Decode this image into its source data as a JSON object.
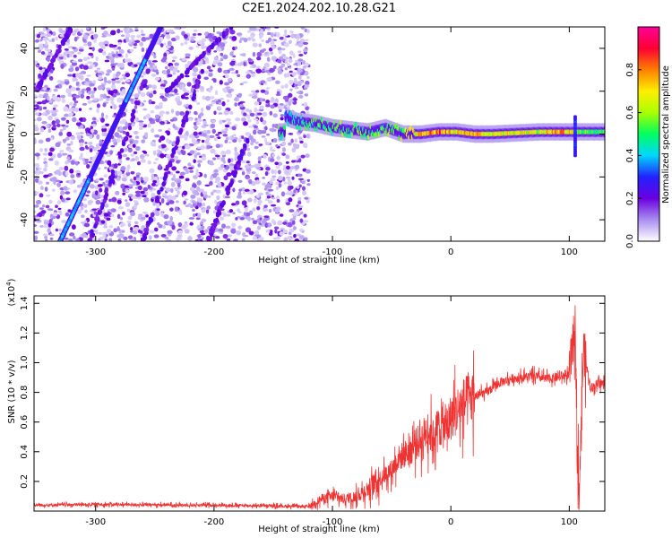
{
  "title": "C2E1.2024.202.10.28.G21",
  "chart_data": [
    {
      "type": "heatmap",
      "xlabel": "Height of straight line (km)",
      "ylabel": "Frequency (Hz)",
      "xlim": [
        -352,
        130
      ],
      "ylim": [
        -50,
        50
      ],
      "x_ticks": [
        -300,
        -200,
        -100,
        0,
        100
      ],
      "x_tick_labels": [
        "-300",
        "-200",
        "-100",
        "0",
        "100"
      ],
      "y_ticks": [
        -40,
        -20,
        0,
        20,
        40
      ],
      "y_tick_labels": [
        "-40",
        "-20",
        "0",
        "20",
        "40"
      ],
      "colorbar": {
        "label": "Normalized spectral amplitude",
        "range": [
          0,
          1
        ],
        "ticks": [
          0.0,
          0.2,
          0.4,
          0.6,
          0.8
        ],
        "tick_labels": [
          "0.0",
          "0.2",
          "0.4",
          "0.6",
          "0.8"
        ],
        "colors": [
          "#ffffff",
          "#a98ef0",
          "#6a00e0",
          "#2222ff",
          "#00d7ff",
          "#00ff60",
          "#aaff00",
          "#ffee00",
          "#ff7f00",
          "#ff0033",
          "#ff0099"
        ]
      },
      "features": {
        "noise_region_x": [
          -352,
          -120
        ],
        "strong_streak": {
          "x": [
            -330,
            -245
          ],
          "y": [
            -50,
            50
          ],
          "peak_amplitude": 0.35
        },
        "weak_streaks": [
          {
            "x": [
              -305,
              -255
            ],
            "y": [
              -50,
              30
            ]
          },
          {
            "x": [
              -260,
              -210
            ],
            "y": [
              -50,
              30
            ]
          },
          {
            "x": [
              -205,
              -170
            ],
            "y": [
              -50,
              0
            ]
          },
          {
            "x": [
              -240,
              -185
            ],
            "y": [
              20,
              50
            ]
          },
          {
            "x": [
              -350,
              -320
            ],
            "y": [
              20,
              50
            ]
          }
        ],
        "center_band": {
          "x": [
            -145,
            130
          ],
          "y": [
            -5,
            7
          ],
          "points": [
            {
              "x": -140,
              "y": 8,
              "a": 0.4
            },
            {
              "x": -130,
              "y": 6,
              "a": 0.5
            },
            {
              "x": -115,
              "y": 5,
              "a": 0.55
            },
            {
              "x": -100,
              "y": 3,
              "a": 0.6
            },
            {
              "x": -85,
              "y": 2,
              "a": 0.55
            },
            {
              "x": -70,
              "y": 1,
              "a": 0.6
            },
            {
              "x": -55,
              "y": 3,
              "a": 0.6
            },
            {
              "x": -40,
              "y": 0,
              "a": 0.65
            },
            {
              "x": -25,
              "y": 0,
              "a": 0.8
            },
            {
              "x": -10,
              "y": 1,
              "a": 0.9
            },
            {
              "x": 5,
              "y": 1,
              "a": 0.75
            },
            {
              "x": 20,
              "y": 0,
              "a": 0.85
            },
            {
              "x": 35,
              "y": 0,
              "a": 0.7
            },
            {
              "x": 55,
              "y": 0.5,
              "a": 0.75
            },
            {
              "x": 75,
              "y": 1,
              "a": 0.7
            },
            {
              "x": 95,
              "y": 1,
              "a": 0.9
            },
            {
              "x": 110,
              "y": 1,
              "a": 0.6
            },
            {
              "x": 125,
              "y": 1,
              "a": 0.55
            }
          ],
          "spike": {
            "x": 105,
            "y": [
              -10,
              8
            ]
          }
        }
      }
    },
    {
      "type": "line",
      "xlabel": "Height of straight line (km)",
      "ylabel": "SNR (10 * v/v)",
      "y_multiplier_label": "(x10",
      "y_multiplier_exp": "4",
      "xlim": [
        -352,
        130
      ],
      "ylim": [
        0,
        14500
      ],
      "x_ticks": [
        -300,
        -200,
        -100,
        0,
        100
      ],
      "x_tick_labels": [
        "-300",
        "-200",
        "-100",
        "0",
        "100"
      ],
      "y_ticks": [
        2000,
        4000,
        6000,
        8000,
        10000,
        12000,
        14000
      ],
      "y_tick_labels": [
        "0.2",
        "0.4",
        "0.6",
        "0.8",
        "1.0",
        "1.2",
        "1.4"
      ],
      "color": "#ee3333",
      "series": [
        {
          "x": [
            -352,
            -300,
            -250,
            -200,
            -150,
            -120,
            -110,
            -100,
            -90,
            -80,
            -70,
            -60,
            -50,
            -45,
            -40,
            -35,
            -30,
            -25,
            -20,
            -15,
            -10,
            -5,
            0,
            10,
            20,
            30,
            40,
            50,
            60,
            70,
            80,
            90,
            100,
            105,
            108,
            112,
            118,
            125,
            130
          ],
          "y": [
            400,
            450,
            420,
            400,
            350,
            300,
            800,
            1000,
            800,
            1000,
            1500,
            2200,
            2800,
            3500,
            3800,
            4000,
            4500,
            4800,
            5500,
            5000,
            5800,
            5500,
            6300,
            7200,
            7700,
            8000,
            8600,
            8900,
            9000,
            9100,
            8900,
            9000,
            9200,
            12500,
            900,
            11000,
            8300,
            8600,
            8600
          ]
        }
      ]
    }
  ]
}
